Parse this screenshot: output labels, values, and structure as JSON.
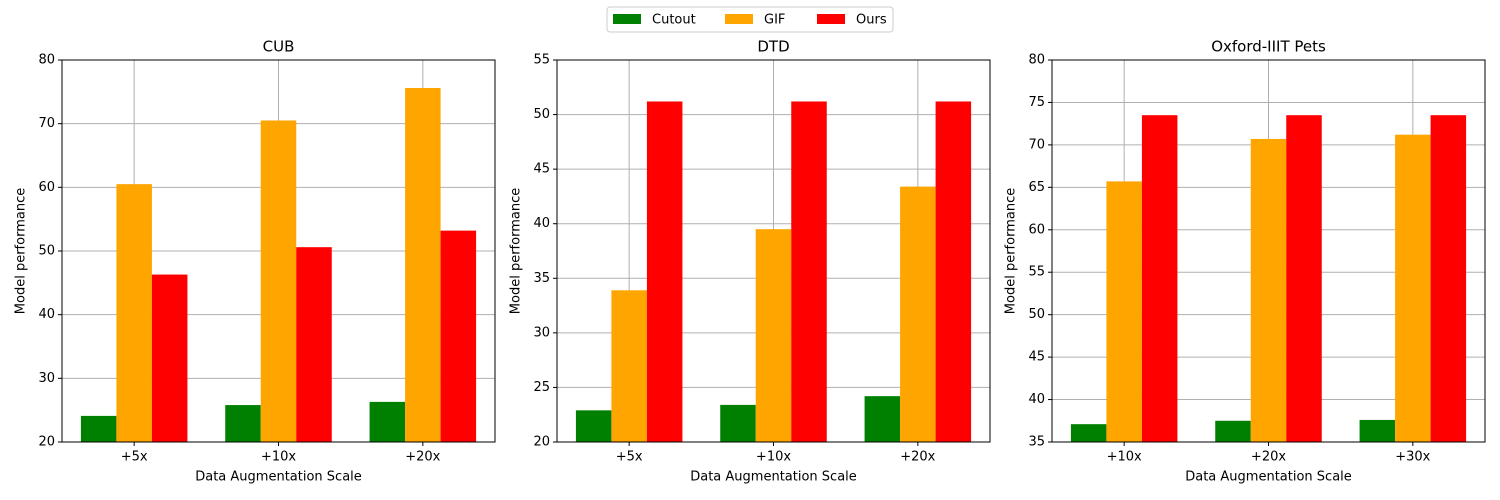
{
  "chart_data": [
    {
      "type": "bar",
      "title": "CUB",
      "x_label": "Data Augmentation Scale",
      "y_label": "Model performance",
      "categories": [
        "+5x",
        "+10x",
        "+20x"
      ],
      "series": [
        {
          "name": "Cutout",
          "color": "#008000",
          "values": [
            24.1,
            25.8,
            26.3
          ]
        },
        {
          "name": "GIF",
          "color": "#ffa500",
          "values": [
            60.5,
            70.5,
            75.6
          ]
        },
        {
          "name": "Ours",
          "color": "#ff0000",
          "values": [
            46.3,
            50.6,
            53.2
          ]
        }
      ],
      "ylim": [
        20,
        80
      ],
      "yticks": [
        20,
        30,
        40,
        50,
        60,
        70,
        80
      ],
      "grid": true
    },
    {
      "type": "bar",
      "title": "DTD",
      "x_label": "Data Augmentation Scale",
      "y_label": "Model performance",
      "categories": [
        "+5x",
        "+10x",
        "+20x"
      ],
      "series": [
        {
          "color": "#008000",
          "values": [
            22.9,
            23.4,
            24.2
          ]
        },
        {
          "color": "#ffa500",
          "values": [
            33.9,
            39.5,
            43.4
          ]
        },
        {
          "color": "#ff0000",
          "values": [
            51.2,
            51.2,
            51.2
          ]
        }
      ],
      "ylim": [
        20,
        55
      ],
      "yticks": [
        20,
        25,
        30,
        35,
        40,
        45,
        50,
        55
      ],
      "grid": true
    },
    {
      "type": "bar",
      "title": "Oxford-IIIT Pets",
      "x_label": "Data Augmentation Scale",
      "y_label": "Model performance",
      "categories": [
        "+10x",
        "+20x",
        "+30x"
      ],
      "series": [
        {
          "color": "#008000",
          "values": [
            37.1,
            37.5,
            37.6
          ]
        },
        {
          "color": "#ffa500",
          "values": [
            65.7,
            70.7,
            71.2
          ]
        },
        {
          "color": "#ff0000",
          "values": [
            73.5,
            73.5,
            73.5
          ]
        }
      ],
      "ylim": [
        35,
        80
      ],
      "yticks": [
        35,
        40,
        45,
        50,
        55,
        60,
        65,
        70,
        75,
        80
      ],
      "grid": true
    }
  ]
}
